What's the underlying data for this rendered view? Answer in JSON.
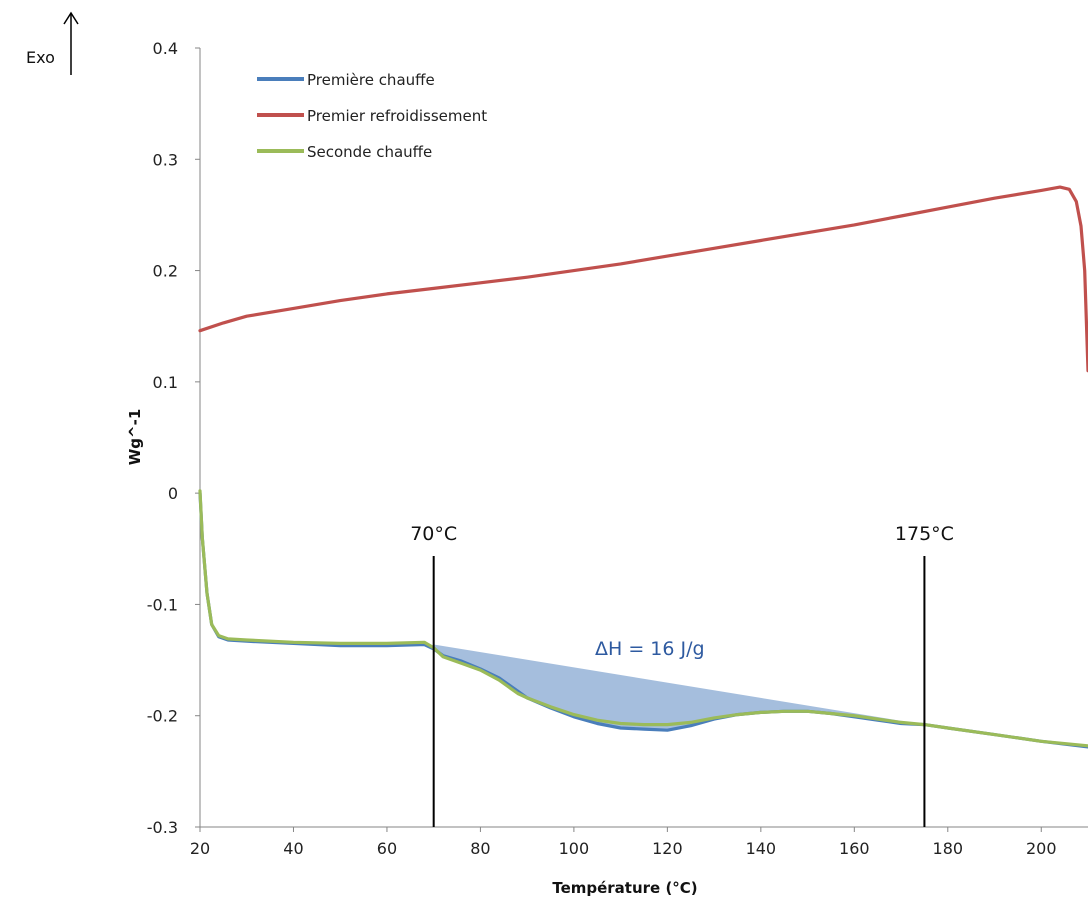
{
  "chart_data": {
    "type": "line",
    "xlabel": "Température (°C)",
    "ylabel": "Wg^-1",
    "xlim": [
      20,
      210
    ],
    "ylim": [
      -0.3,
      0.4
    ],
    "x_ticks": [
      20,
      40,
      60,
      80,
      100,
      120,
      140,
      160,
      180,
      200
    ],
    "y_ticks": [
      -0.3,
      -0.2,
      -0.1,
      0,
      0.1,
      0.2,
      0.3,
      0.4
    ],
    "grid": false,
    "legend": "top-left",
    "exo_label": "Exo",
    "series": [
      {
        "name": "Première chauffe",
        "color": "#4a7ebb",
        "points": [
          [
            20,
            0.0
          ],
          [
            20.5,
            -0.04
          ],
          [
            21.5,
            -0.09
          ],
          [
            22.5,
            -0.118
          ],
          [
            24,
            -0.129
          ],
          [
            26,
            -0.132
          ],
          [
            30,
            -0.133
          ],
          [
            40,
            -0.135
          ],
          [
            50,
            -0.137
          ],
          [
            60,
            -0.137
          ],
          [
            68,
            -0.136
          ],
          [
            70,
            -0.14
          ],
          [
            72,
            -0.146
          ],
          [
            76,
            -0.151
          ],
          [
            80,
            -0.158
          ],
          [
            84,
            -0.166
          ],
          [
            88,
            -0.178
          ],
          [
            90,
            -0.184
          ],
          [
            95,
            -0.193
          ],
          [
            100,
            -0.201
          ],
          [
            105,
            -0.207
          ],
          [
            110,
            -0.211
          ],
          [
            115,
            -0.212
          ],
          [
            120,
            -0.213
          ],
          [
            125,
            -0.209
          ],
          [
            130,
            -0.203
          ],
          [
            135,
            -0.199
          ],
          [
            140,
            -0.197
          ],
          [
            145,
            -0.196
          ],
          [
            150,
            -0.196
          ],
          [
            155,
            -0.198
          ],
          [
            160,
            -0.201
          ],
          [
            165,
            -0.204
          ],
          [
            170,
            -0.207
          ],
          [
            175,
            -0.208
          ],
          [
            180,
            -0.211
          ],
          [
            190,
            -0.217
          ],
          [
            200,
            -0.223
          ],
          [
            210,
            -0.228
          ]
        ]
      },
      {
        "name": "Premier refroidissement",
        "color": "#c0504d",
        "points": [
          [
            20,
            0.146
          ],
          [
            25,
            0.153
          ],
          [
            30,
            0.159
          ],
          [
            40,
            0.166
          ],
          [
            50,
            0.173
          ],
          [
            60,
            0.179
          ],
          [
            70,
            0.184
          ],
          [
            80,
            0.189
          ],
          [
            90,
            0.194
          ],
          [
            100,
            0.2
          ],
          [
            110,
            0.206
          ],
          [
            120,
            0.213
          ],
          [
            130,
            0.22
          ],
          [
            140,
            0.227
          ],
          [
            150,
            0.234
          ],
          [
            160,
            0.241
          ],
          [
            170,
            0.249
          ],
          [
            180,
            0.257
          ],
          [
            190,
            0.265
          ],
          [
            200,
            0.272
          ],
          [
            204,
            0.275
          ],
          [
            206,
            0.273
          ],
          [
            207.5,
            0.262
          ],
          [
            208.5,
            0.24
          ],
          [
            209.3,
            0.2
          ],
          [
            210,
            0.11
          ]
        ]
      },
      {
        "name": "Seconde chauffe",
        "color": "#9bbb59",
        "points": [
          [
            20,
            0.002
          ],
          [
            20.5,
            -0.04
          ],
          [
            21.5,
            -0.09
          ],
          [
            22.5,
            -0.118
          ],
          [
            24,
            -0.128
          ],
          [
            26,
            -0.131
          ],
          [
            30,
            -0.132
          ],
          [
            40,
            -0.134
          ],
          [
            50,
            -0.135
          ],
          [
            60,
            -0.135
          ],
          [
            68,
            -0.134
          ],
          [
            70,
            -0.139
          ],
          [
            72,
            -0.147
          ],
          [
            76,
            -0.153
          ],
          [
            80,
            -0.159
          ],
          [
            84,
            -0.168
          ],
          [
            88,
            -0.18
          ],
          [
            90,
            -0.184
          ],
          [
            95,
            -0.192
          ],
          [
            100,
            -0.199
          ],
          [
            105,
            -0.204
          ],
          [
            110,
            -0.207
          ],
          [
            115,
            -0.208
          ],
          [
            120,
            -0.208
          ],
          [
            125,
            -0.206
          ],
          [
            130,
            -0.202
          ],
          [
            135,
            -0.199
          ],
          [
            140,
            -0.197
          ],
          [
            145,
            -0.196
          ],
          [
            150,
            -0.196
          ],
          [
            155,
            -0.198
          ],
          [
            160,
            -0.2
          ],
          [
            165,
            -0.203
          ],
          [
            170,
            -0.206
          ],
          [
            175,
            -0.208
          ],
          [
            180,
            -0.211
          ],
          [
            190,
            -0.217
          ],
          [
            200,
            -0.223
          ],
          [
            210,
            -0.227
          ]
        ]
      }
    ],
    "vertical_markers": [
      {
        "x": 70,
        "label": "70°C"
      },
      {
        "x": 175,
        "label": "175°C"
      }
    ],
    "shaded_region": {
      "label": "ΔH = 16 J/g",
      "color": "#95b3d7",
      "baseline": [
        [
          70,
          -0.136
        ],
        [
          175,
          -0.208
        ]
      ],
      "x_range": [
        70,
        175
      ]
    }
  }
}
